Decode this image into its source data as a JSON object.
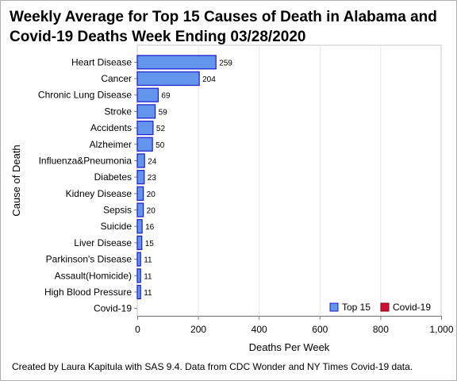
{
  "chart_data": {
    "type": "bar",
    "orientation": "horizontal",
    "title": "Weekly Average for Top 15 Causes of Death in Alabama and Covid-19 Deaths Week Ending 03/28/2020",
    "xlabel": "Deaths Per Week",
    "ylabel": "Cause of Death",
    "xlim": [
      0,
      1000
    ],
    "xticks": [
      0,
      200,
      400,
      600,
      800,
      1000
    ],
    "xtick_labels": [
      "0",
      "200",
      "400",
      "600",
      "800",
      "1,000"
    ],
    "grid": true,
    "legend_position": "bottom-right",
    "categories": [
      "Heart Disease",
      "Cancer",
      "Chronic Lung Disease",
      "Stroke",
      "Accidents",
      "Alzheimer",
      "Influenza&Pneumonia",
      "Diabetes",
      "Kidney Disease",
      "Sepsis",
      "Suicide",
      "Liver Disease",
      "Parkinson's Disease",
      "Assault(Homicide)",
      "High Blood Pressure",
      "Covid-19"
    ],
    "series": [
      {
        "name": "Top 15",
        "color": "#6495ED",
        "edge_color": "#1B1BCF",
        "values": [
          259,
          204,
          69,
          59,
          52,
          50,
          24,
          23,
          20,
          20,
          16,
          15,
          11,
          11,
          11,
          null
        ]
      },
      {
        "name": "Covid-19",
        "color": "#D0103A",
        "edge_color": "#8B0000",
        "values": [
          null,
          null,
          null,
          null,
          null,
          null,
          null,
          null,
          null,
          null,
          null,
          null,
          null,
          null,
          null,
          0
        ]
      }
    ],
    "data_labels": [
      "259",
      "204",
      "69",
      "59",
      "52",
      "50",
      "24",
      "23",
      "20",
      "20",
      "16",
      "15",
      "11",
      "11",
      "11",
      ""
    ]
  },
  "footnote": "Created by Laura Kapitula with SAS 9.4. Data from CDC Wonder and NY Times Covid-19 data."
}
